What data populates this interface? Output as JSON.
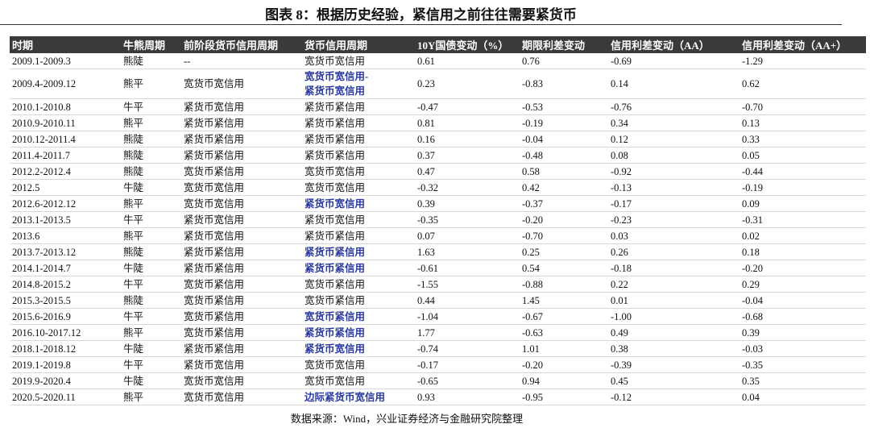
{
  "header": {
    "title": "图表 8：根据历史经验，紧信用之前往往需要紧货币"
  },
  "table": {
    "highlight_color": "#2b3a9e",
    "negative_color": "#ff1a1a",
    "positive_color": "#5b8ed6",
    "headers": [
      "时期",
      "牛熊周期",
      "前阶段货币信用周期",
      "货币信用周期",
      "10Y国债变动（%）",
      "期限利差变动",
      "信用利差变动（AA）",
      "信用利差变动（AA+）"
    ],
    "rows": [
      {
        "period": "2009.1-2009.3",
        "trend": "熊陡",
        "prev_cycle": "--",
        "cycle": "宽货币宽信用",
        "values": [
          0.61,
          0.76,
          -0.69,
          -1.29
        ]
      },
      {
        "period": "2009.4-2009.12",
        "trend": "熊平",
        "prev_cycle": "宽货币宽信用",
        "cycle": "宽货币宽信用-\n紧货币宽信用",
        "cycle_highlight": true,
        "values": [
          0.23,
          -0.83,
          0.14,
          0.62
        ]
      },
      {
        "period": "2010.1-2010.8",
        "trend": "牛平",
        "prev_cycle": "紧货币宽信用",
        "cycle": "紧货币紧信用",
        "values": [
          -0.47,
          -0.53,
          -0.76,
          {
            "value": -0.7,
            "label": "-0.70"
          }
        ]
      },
      {
        "period": "2010.9-2010.11",
        "trend": "熊平",
        "prev_cycle": "紧货币紧信用",
        "cycle": "紧货币紧信用",
        "values": [
          0.81,
          -0.19,
          0.34,
          0.13
        ]
      },
      {
        "period": "2010.12-2011.4",
        "trend": "熊陡",
        "prev_cycle": "紧货币紧信用",
        "cycle": "紧货币紧信用",
        "values": [
          0.16,
          -0.04,
          0.12,
          0.33
        ]
      },
      {
        "period": "2011.4-2011.7",
        "trend": "熊陡",
        "prev_cycle": "紧货币紧信用",
        "cycle": "紧货币紧信用",
        "values": [
          0.37,
          -0.48,
          0.08,
          0.05
        ]
      },
      {
        "period": "2012.2-2012.4",
        "trend": "熊陡",
        "prev_cycle": "宽货币紧信用",
        "cycle": "宽货币宽信用",
        "values": [
          0.47,
          0.58,
          -0.92,
          -0.44
        ]
      },
      {
        "period": "2012.5",
        "trend": "牛陡",
        "prev_cycle": "宽货币宽信用",
        "cycle": "宽货币宽信用",
        "values": [
          -0.32,
          0.42,
          -0.13,
          -0.19
        ]
      },
      {
        "period": "2012.6-2012.12",
        "trend": "熊平",
        "prev_cycle": "宽货币宽信用",
        "cycle": "紧货币宽信用",
        "cycle_highlight": true,
        "values": [
          0.39,
          -0.37,
          -0.17,
          0.09
        ]
      },
      {
        "period": "2013.1-2013.5",
        "trend": "牛平",
        "prev_cycle": "紧货币宽信用",
        "cycle": "紧货币宽信用",
        "values": [
          -0.35,
          {
            "value": -0.2,
            "label": "-0.20"
          },
          -0.23,
          -0.31
        ]
      },
      {
        "period": "2013.6",
        "trend": "熊平",
        "prev_cycle": "紧货币宽信用",
        "cycle": "紧货币紧信用",
        "values": [
          0.07,
          {
            "value": -0.7,
            "label": "-0.70"
          },
          0.03,
          0.02
        ]
      },
      {
        "period": "2013.7-2013.12",
        "trend": "熊陡",
        "prev_cycle": "紧货币紧信用",
        "cycle": "紧货币紧信用",
        "cycle_highlight": true,
        "values": [
          1.63,
          0.25,
          0.26,
          0.18
        ]
      },
      {
        "period": "2014.1-2014.7",
        "trend": "牛陡",
        "prev_cycle": "紧货币紧信用",
        "cycle": "紧货币紧信用",
        "cycle_highlight": true,
        "values": [
          -0.61,
          0.54,
          -0.18,
          {
            "value": -0.2,
            "label": "-0.20"
          }
        ]
      },
      {
        "period": "2014.8-2015.2",
        "trend": "牛平",
        "prev_cycle": "宽货币紧信用",
        "cycle": "宽货币紧信用",
        "values": [
          -1.55,
          -0.88,
          0.22,
          0.29
        ]
      },
      {
        "period": "2015.3-2015.5",
        "trend": "熊陡",
        "prev_cycle": "宽货币紧信用",
        "cycle": "宽货币紧信用",
        "values": [
          0.44,
          1.45,
          0.01,
          -0.04
        ]
      },
      {
        "period": "2015.6-2016.9",
        "trend": "牛平",
        "prev_cycle": "宽货币紧信用",
        "cycle": "宽货币紧信用",
        "cycle_highlight": true,
        "values": [
          -1.04,
          -0.67,
          {
            "value": -1,
            "label": "-1.00"
          },
          -0.68
        ]
      },
      {
        "period": "2016.10-2017.12",
        "trend": "熊平",
        "prev_cycle": "宽货币紧信用",
        "cycle": "紧货币紧信用",
        "cycle_highlight": true,
        "values": [
          1.77,
          -0.63,
          0.49,
          0.39
        ]
      },
      {
        "period": "2018.1-2018.12",
        "trend": "牛陡",
        "prev_cycle": "紧货币紧信用",
        "cycle": "紧货币宽信用",
        "cycle_highlight": true,
        "values": [
          -0.74,
          1.01,
          0.38,
          -0.03
        ]
      },
      {
        "period": "2019.1-2019.8",
        "trend": "牛平",
        "prev_cycle": "紧货币宽信用",
        "cycle": "宽货币宽信用",
        "values": [
          -0.17,
          {
            "value": -0.2,
            "label": "-0.20"
          },
          -0.39,
          -0.35
        ]
      },
      {
        "period": "2019.9-2020.4",
        "trend": "牛陡",
        "prev_cycle": "宽货币宽信用",
        "cycle": "宽货币宽信用",
        "values": [
          -0.65,
          0.94,
          0.45,
          0.35
        ]
      },
      {
        "period": "2020.5-2020.11",
        "trend": "熊平",
        "prev_cycle": "宽货币宽信用",
        "cycle": "边际紧货币宽信用",
        "cycle_highlight": true,
        "values": [
          0.93,
          -0.95,
          -0.12,
          0.04
        ]
      }
    ]
  },
  "source": "数据来源：Wind，兴业证券经济与金融研究院整理"
}
